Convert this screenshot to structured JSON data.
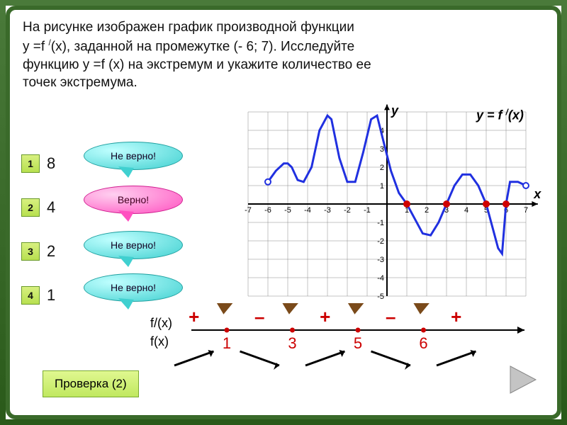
{
  "question": {
    "line1": "На рисунке изображен график  производной функции",
    "line2_pre": "у =f ",
    "line2_sup": "/",
    "line2_post": "(х), заданной на промежутке (- 6; 7). Исследуйте",
    "line3": "функцию у =f (х) на экстремум и укажите количество ее",
    "line4": "точек экстремума."
  },
  "answers": [
    {
      "n": "1",
      "value": "8",
      "bubble": "Не верно!",
      "bubble_kind": "cyan"
    },
    {
      "n": "2",
      "value": "4",
      "bubble": "Верно!",
      "bubble_kind": "pink"
    },
    {
      "n": "3",
      "value": "2",
      "bubble": "Не верно!",
      "bubble_kind": "cyan"
    },
    {
      "n": "4",
      "value": "1",
      "bubble": "Не верно!",
      "bubble_kind": "cyan"
    }
  ],
  "verify_label": "Проверка (2)",
  "chart": {
    "x_ticks": [
      -7,
      -6,
      -5,
      -4,
      -3,
      -2,
      -1,
      1,
      2,
      3,
      4,
      5,
      6,
      7
    ],
    "y_ticks_pos": [
      1,
      2,
      3,
      4
    ],
    "y_ticks_neg": [
      -1,
      -2,
      -3,
      -4,
      -5
    ],
    "x_axis_label": "x",
    "y_axis_label": "y",
    "fn_label_pre": "y = f ",
    "fn_label_sup": "/",
    "fn_label_post": "(x)",
    "xlim": [
      -7,
      7
    ],
    "ylim": [
      -5,
      5
    ],
    "curve_color": "#2030e0",
    "zero_dot_color": "#d00000",
    "grid_color": "#888888",
    "background": "#ffffff",
    "curve_points": [
      [
        -6.0,
        1.2
      ],
      [
        -5.6,
        1.8
      ],
      [
        -5.2,
        2.2
      ],
      [
        -5.0,
        2.2
      ],
      [
        -4.8,
        2.0
      ],
      [
        -4.5,
        1.3
      ],
      [
        -4.2,
        1.2
      ],
      [
        -3.8,
        2.0
      ],
      [
        -3.4,
        4.0
      ],
      [
        -3.0,
        4.8
      ],
      [
        -2.8,
        4.6
      ],
      [
        -2.4,
        2.5
      ],
      [
        -2.0,
        1.2
      ],
      [
        -1.6,
        1.2
      ],
      [
        -1.2,
        2.8
      ],
      [
        -0.8,
        4.6
      ],
      [
        -0.5,
        4.8
      ],
      [
        -0.2,
        3.5
      ],
      [
        0.2,
        1.8
      ],
      [
        0.6,
        0.6
      ],
      [
        1.0,
        0.0
      ],
      [
        1.4,
        -0.8
      ],
      [
        1.8,
        -1.6
      ],
      [
        2.2,
        -1.7
      ],
      [
        2.6,
        -1.0
      ],
      [
        3.0,
        0.0
      ],
      [
        3.4,
        1.0
      ],
      [
        3.8,
        1.6
      ],
      [
        4.2,
        1.6
      ],
      [
        4.6,
        1.0
      ],
      [
        5.0,
        0.0
      ],
      [
        5.3,
        -1.2
      ],
      [
        5.6,
        -2.4
      ],
      [
        5.8,
        -2.7
      ],
      [
        6.0,
        0.0
      ],
      [
        6.2,
        1.2
      ],
      [
        6.6,
        1.2
      ],
      [
        7.0,
        1.0
      ]
    ],
    "open_points": [
      [
        -6.0,
        1.2
      ],
      [
        7.0,
        1.0
      ]
    ],
    "zero_points": [
      1,
      3,
      5,
      6
    ]
  },
  "signline": {
    "fprime_label": "f'(x)",
    "f_label": "f(x)",
    "points": [
      {
        "x": 1,
        "sign_before": "+",
        "type": "max"
      },
      {
        "x": 3,
        "sign_before": "–",
        "type": "min"
      },
      {
        "x": 5,
        "sign_before": "+",
        "type": "max"
      },
      {
        "x": 6,
        "sign_before": "–",
        "type": "min"
      }
    ],
    "last_sign": "+",
    "sign_color": "#cc0000",
    "check_color": "#7a4a1a"
  },
  "colors": {
    "frame": "#3a6a2a",
    "answer_btn_bg": "#c8e860",
    "bubble_cyan": "#40d0d0",
    "bubble_pink": "#ff50c0",
    "nav_arrow": "#b0b0b0"
  }
}
